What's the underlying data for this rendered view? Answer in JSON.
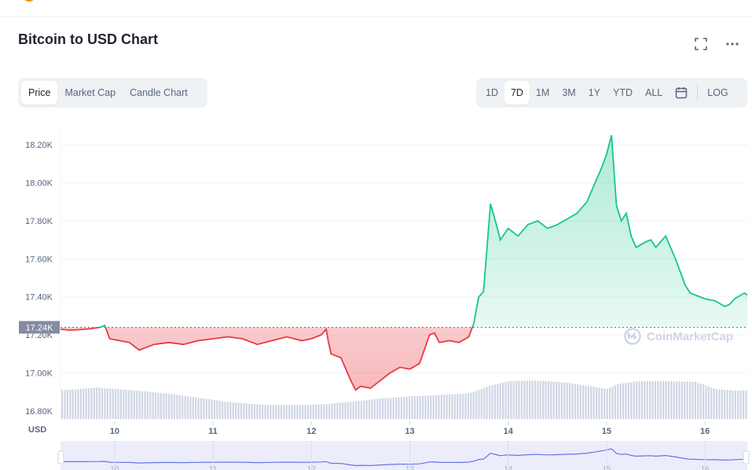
{
  "header": {
    "title": "Bitcoin to USD Chart",
    "fullscreen_icon": "expand-icon",
    "more_icon": "more-horizontal-icon"
  },
  "view_tabs": {
    "items": [
      "Price",
      "Market Cap",
      "Candle Chart"
    ],
    "active": "Price"
  },
  "range_tabs": {
    "items": [
      "1D",
      "7D",
      "1M",
      "3M",
      "1Y",
      "YTD",
      "ALL"
    ],
    "active": "7D",
    "calendar_icon": "calendar-icon",
    "log_label": "LOG"
  },
  "watermark": {
    "text": "CoinMarketCap",
    "icon": "coinmarketcap-logo-icon"
  },
  "chart_data": {
    "type": "area",
    "currency_label": "USD",
    "y_ticks": [
      "18.20K",
      "18.00K",
      "17.80K",
      "17.60K",
      "17.40K",
      "17.20K",
      "17.00K",
      "16.80K"
    ],
    "y_tick_values": [
      18200,
      18000,
      17800,
      17600,
      17400,
      17200,
      17000,
      16800
    ],
    "x_ticks": [
      "10",
      "11",
      "12",
      "13",
      "14",
      "15",
      "16"
    ],
    "x_tick_values": [
      10,
      11,
      12,
      13,
      14,
      15,
      16
    ],
    "x_range": [
      9.45,
      16.43
    ],
    "ylim": [
      16750,
      18300
    ],
    "baseline": {
      "value": 17240,
      "label": "17.24K"
    },
    "colors": {
      "up": "#16c784",
      "down": "#ea3943",
      "volume": "#cfd6e4",
      "navigator": "#6874e8"
    },
    "price": {
      "x": [
        9.45,
        9.55,
        9.65,
        9.75,
        9.85,
        9.9,
        9.95,
        10.05,
        10.15,
        10.25,
        10.4,
        10.55,
        10.7,
        10.85,
        11.0,
        11.15,
        11.3,
        11.45,
        11.6,
        11.75,
        11.9,
        12.0,
        12.1,
        12.15,
        12.17,
        12.2,
        12.3,
        12.4,
        12.45,
        12.5,
        12.6,
        12.7,
        12.8,
        12.9,
        13.0,
        13.1,
        13.2,
        13.25,
        13.3,
        13.4,
        13.5,
        13.6,
        13.65,
        13.7,
        13.72,
        13.75,
        13.82,
        13.88,
        13.92,
        14.0,
        14.1,
        14.2,
        14.3,
        14.4,
        14.5,
        14.6,
        14.7,
        14.8,
        14.9,
        14.95,
        15.0,
        15.05,
        15.1,
        15.15,
        15.2,
        15.25,
        15.3,
        15.4,
        15.45,
        15.5,
        15.6,
        15.7,
        15.8,
        15.85,
        15.9,
        16.0,
        16.1,
        16.2,
        16.25,
        16.3,
        16.4,
        16.43
      ],
      "y": [
        17230,
        17225,
        17228,
        17232,
        17240,
        17250,
        17180,
        17170,
        17160,
        17120,
        17150,
        17160,
        17150,
        17170,
        17180,
        17190,
        17180,
        17150,
        17170,
        17190,
        17170,
        17180,
        17200,
        17230,
        17170,
        17100,
        17080,
        16960,
        16910,
        16930,
        16920,
        16960,
        17000,
        17030,
        17020,
        17050,
        17200,
        17210,
        17160,
        17170,
        17160,
        17190,
        17260,
        17400,
        17410,
        17430,
        17890,
        17780,
        17700,
        17760,
        17720,
        17780,
        17800,
        17760,
        17780,
        17810,
        17840,
        17900,
        18020,
        18080,
        18150,
        18250,
        17880,
        17800,
        17840,
        17720,
        17660,
        17690,
        17700,
        17660,
        17720,
        17600,
        17460,
        17420,
        17410,
        17390,
        17380,
        17350,
        17360,
        17390,
        17420,
        17410
      ]
    },
    "volume": {
      "x": [
        9.45,
        9.6,
        9.8,
        10.0,
        10.3,
        10.6,
        10.9,
        11.2,
        11.5,
        11.8,
        12.1,
        12.4,
        12.7,
        13.0,
        13.3,
        13.6,
        13.8,
        14.0,
        14.2,
        14.4,
        14.6,
        14.8,
        15.0,
        15.1,
        15.3,
        15.6,
        15.9,
        16.1,
        16.3,
        16.43
      ],
      "y": [
        0.92,
        0.94,
        1.0,
        0.95,
        0.88,
        0.78,
        0.65,
        0.52,
        0.45,
        0.44,
        0.46,
        0.55,
        0.65,
        0.72,
        0.76,
        0.82,
        1.05,
        1.2,
        1.22,
        1.2,
        1.15,
        1.05,
        0.95,
        1.1,
        1.2,
        1.2,
        1.18,
        0.95,
        0.9,
        0.9
      ]
    }
  }
}
